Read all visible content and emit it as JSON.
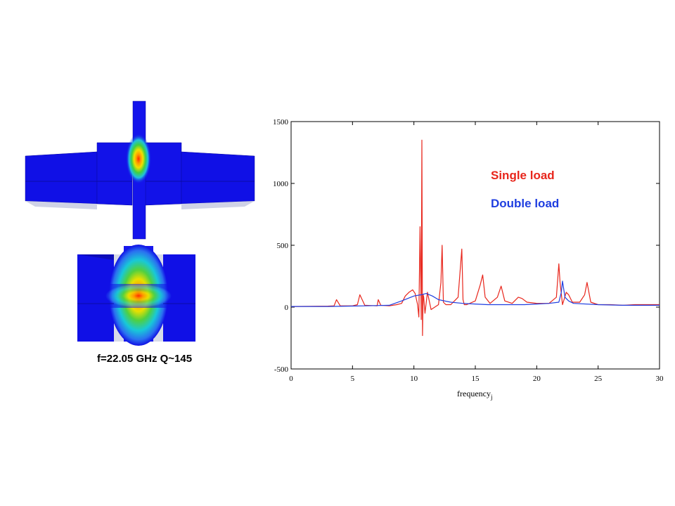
{
  "caption": "f=22.05 GHz Q~145",
  "colors": {
    "single": "#e8261c",
    "double": "#1f3ee0",
    "structure": "#1010e6"
  },
  "chart_data": {
    "type": "line",
    "title": "",
    "xlabel": "frequency",
    "xlabel_subscript": "j",
    "ylabel": "",
    "xlim": [
      0,
      30
    ],
    "ylim": [
      -500,
      1500
    ],
    "xticks": [
      "0",
      "5",
      "10",
      "15",
      "20",
      "25",
      "30"
    ],
    "yticks": [
      "-500",
      "0",
      "500",
      "1000",
      "1500"
    ],
    "grid": false,
    "legend": "top-right",
    "series": [
      {
        "name": "Single load",
        "color": "#e8261c",
        "x": [
          0,
          3,
          3.5,
          3.7,
          4,
          5,
          5.4,
          5.6,
          6,
          7,
          7.1,
          7.3,
          8,
          8.6,
          9,
          9.3,
          9.6,
          9.9,
          10.1,
          10.3,
          10.4,
          10.5,
          10.6,
          10.65,
          10.7,
          10.75,
          10.8,
          10.9,
          11.1,
          11.4,
          12,
          12.2,
          12.3,
          12.4,
          12.6,
          13,
          13.6,
          13.9,
          14,
          14.1,
          14.3,
          15,
          15.4,
          15.6,
          15.8,
          16.2,
          16.8,
          17.1,
          17.4,
          18,
          18.5,
          18.8,
          19.2,
          20,
          21,
          21.6,
          21.8,
          21.9,
          22.1,
          22.4,
          22.6,
          22.9,
          23.5,
          23.9,
          24.1,
          24.4,
          25,
          26,
          27,
          28,
          29,
          30
        ],
        "y": [
          5,
          8,
          10,
          60,
          10,
          10,
          20,
          100,
          15,
          10,
          60,
          15,
          10,
          20,
          30,
          90,
          120,
          140,
          110,
          20,
          -80,
          650,
          -100,
          1350,
          -230,
          100,
          80,
          -50,
          120,
          -20,
          20,
          200,
          500,
          40,
          20,
          20,
          80,
          470,
          60,
          20,
          20,
          50,
          180,
          260,
          80,
          30,
          80,
          170,
          50,
          30,
          80,
          70,
          40,
          30,
          30,
          80,
          350,
          200,
          20,
          120,
          100,
          40,
          40,
          100,
          200,
          40,
          20,
          20,
          15,
          20,
          20,
          20
        ]
      },
      {
        "name": "Double load",
        "color": "#1f3ee0",
        "x": [
          0,
          3,
          6,
          8,
          9,
          10,
          10.6,
          11,
          11.5,
          12,
          13,
          14,
          15,
          16,
          17,
          18,
          19,
          20,
          21,
          21.8,
          22,
          22.1,
          22.3,
          22.6,
          23,
          25,
          27,
          29,
          30
        ],
        "y": [
          5,
          5,
          10,
          15,
          50,
          90,
          100,
          110,
          90,
          60,
          40,
          30,
          25,
          20,
          20,
          20,
          20,
          25,
          30,
          40,
          120,
          210,
          80,
          50,
          30,
          20,
          15,
          15,
          15
        ]
      }
    ]
  }
}
